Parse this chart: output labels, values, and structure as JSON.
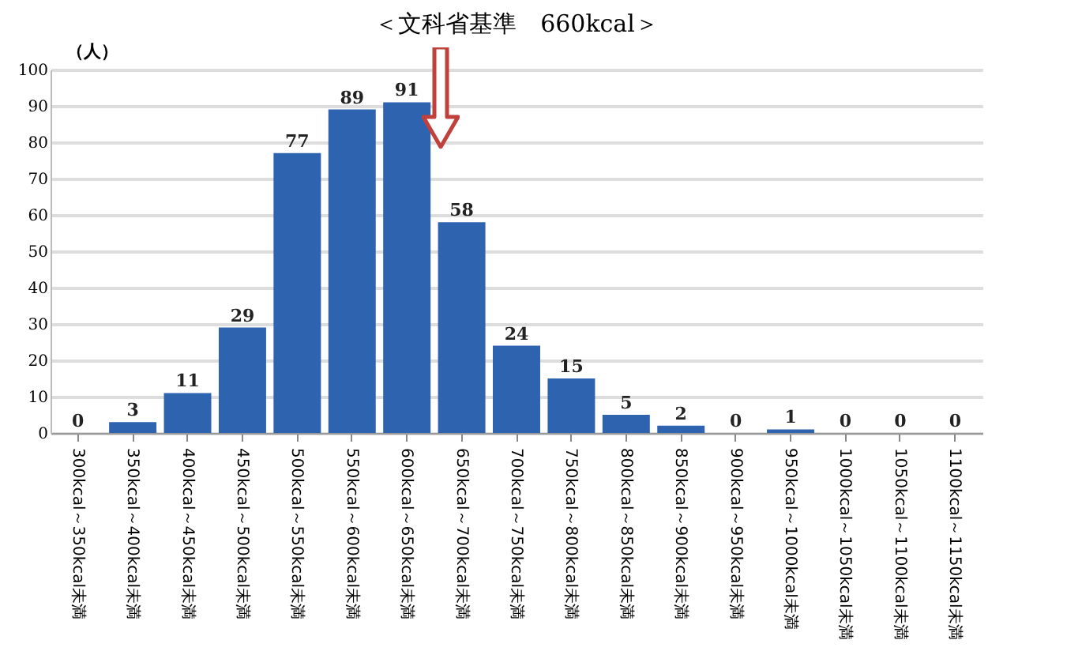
{
  "chart_data": {
    "type": "bar",
    "title": "＜文科省基準　660kcal＞",
    "ylabel": "（人）",
    "categories": [
      "300kcal～350kcal未満",
      "350kcal～400kcal未満",
      "400kcal～450kcal未満",
      "450kcal～500kcal未満",
      "500kcal～550kcal未満",
      "550kcal～600kcal未満",
      "600kcal～650kcal未満",
      "650kcal～700kcal未満",
      "700kcal～750kcal未満",
      "750kcal～800kcal未満",
      "800kcal～850kcal未満",
      "850kcal～900kcal未満",
      "900kcal～950kcal未満",
      "950kcal～1000kcal未満",
      "1000kcal～1050kcal未満",
      "1050kcal～1100kcal未満",
      "1100kcal～1150kcal未満"
    ],
    "values": [
      0,
      3,
      11,
      29,
      77,
      89,
      91,
      58,
      24,
      15,
      5,
      2,
      0,
      1,
      0,
      0,
      0
    ],
    "color": "#2e63b0",
    "ylim": [
      0,
      100
    ],
    "yticks": [
      0,
      10,
      20,
      30,
      40,
      50,
      60,
      70,
      80,
      90,
      100
    ],
    "grid": "y",
    "data_labels": true
  }
}
